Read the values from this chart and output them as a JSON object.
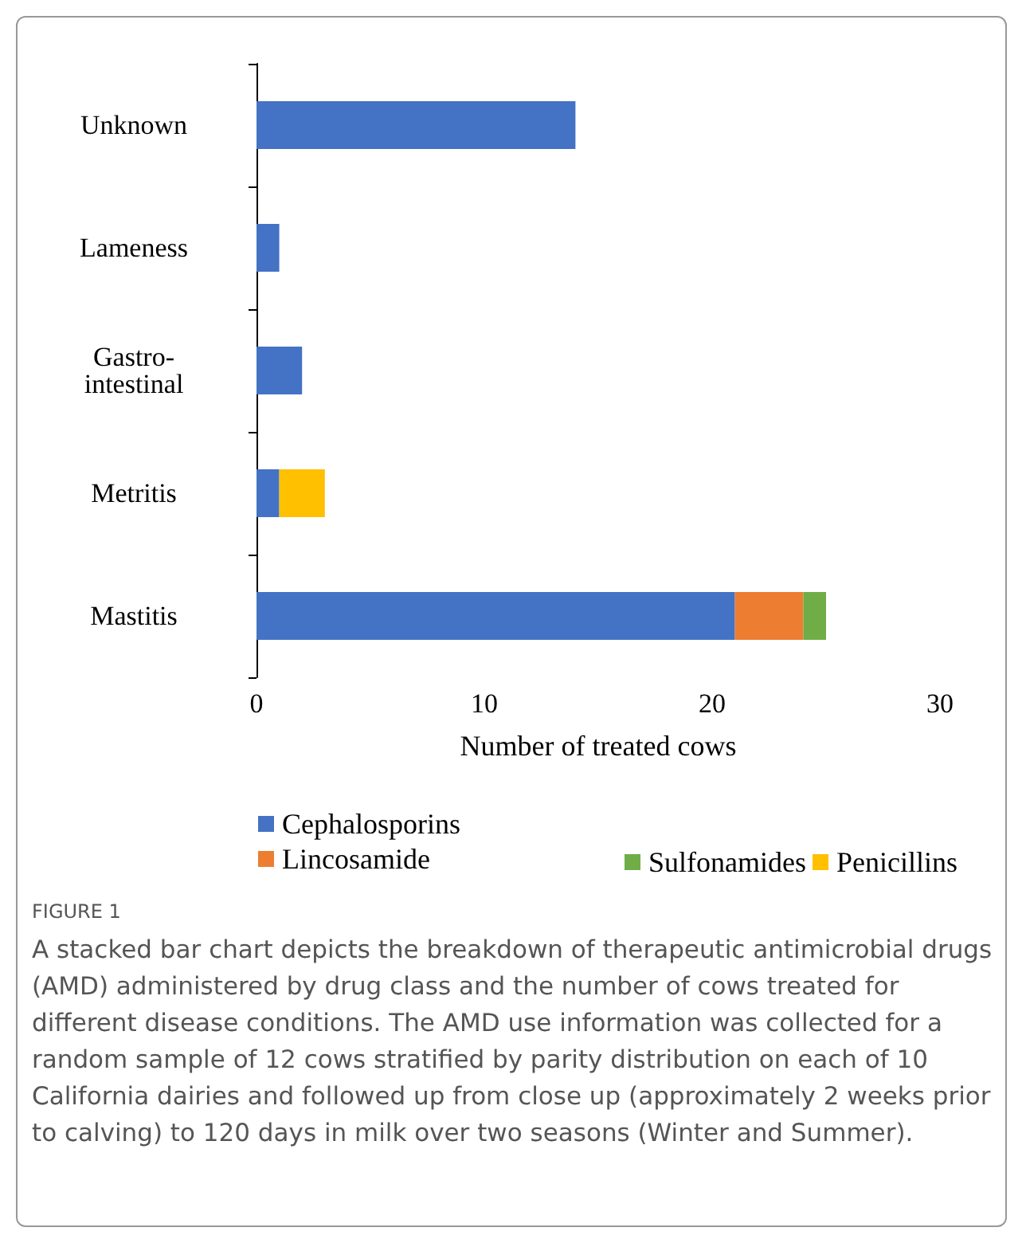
{
  "chart_data": {
    "type": "bar",
    "orientation": "horizontal",
    "stacked": true,
    "categories": [
      "Unknown",
      "Lameness",
      "Gastro-\nintestinal",
      "Metritis",
      "Mastitis"
    ],
    "series": [
      {
        "name": "Cephalosporins",
        "color": "#4472c4",
        "values": [
          14,
          1,
          2,
          1,
          21
        ]
      },
      {
        "name": "Lincosamide",
        "color": "#ed7d31",
        "values": [
          null,
          null,
          null,
          null,
          3
        ]
      },
      {
        "name": "Sulfonamides",
        "color": "#70ad47",
        "values": [
          null,
          null,
          null,
          null,
          1
        ]
      },
      {
        "name": "Penicillins",
        "color": "#ffc000",
        "values": [
          null,
          null,
          null,
          2,
          null
        ]
      }
    ],
    "xlim": [
      0,
      30
    ],
    "xticks": [
      0,
      10,
      20,
      30
    ],
    "xlabel": "Number of treated cows",
    "grid": false,
    "legend": "bottom",
    "annotations": [
      "FIGURE 1",
      "A stacked bar chart depicts the breakdown of therapeutic antimicrobial drugs (AMD) administered by drug class and the number of cows treated for different disease conditions. The AMD use information was collected for a random sample of 12 cows stratified by parity distribution on each of 10 California dairies and followed up from close up (approximately 2 weeks prior to calving) to 120 days in milk over two seasons (Winter and Summer)."
    ]
  }
}
